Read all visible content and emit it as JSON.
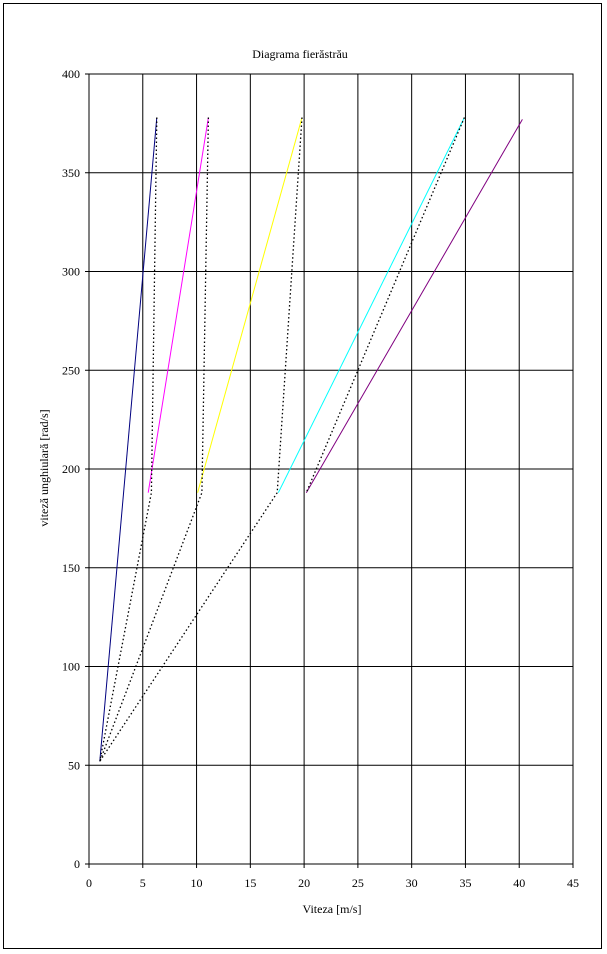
{
  "chart_data": {
    "type": "line",
    "title": "Diagrama fierăstrău",
    "xlabel": "Viteza [m/s]",
    "ylabel": "viteză unghiulară [rad/s]",
    "xlim": [
      0,
      45
    ],
    "ylim": [
      0,
      400
    ],
    "xticks": [
      0,
      5,
      10,
      15,
      20,
      25,
      30,
      35,
      40,
      45
    ],
    "yticks": [
      0,
      50,
      100,
      150,
      200,
      250,
      300,
      350,
      400
    ],
    "grid": true,
    "legend": "none",
    "series": [
      {
        "color": "#000080",
        "style": "solid",
        "points": [
          [
            1.0,
            52
          ],
          [
            6.3,
            378
          ]
        ]
      },
      {
        "color": "#ff00ff",
        "style": "solid",
        "points": [
          [
            5.5,
            188
          ],
          [
            11.1,
            378
          ]
        ]
      },
      {
        "color": "#ffff00",
        "style": "solid",
        "points": [
          [
            10.1,
            188
          ],
          [
            19.8,
            378
          ]
        ]
      },
      {
        "color": "#00ffff",
        "style": "solid",
        "points": [
          [
            17.6,
            188
          ],
          [
            34.9,
            378
          ]
        ]
      },
      {
        "color": "#800080",
        "style": "solid",
        "points": [
          [
            20.2,
            188
          ],
          [
            40.3,
            377
          ]
        ]
      },
      {
        "color": "#000000",
        "style": "dotted",
        "points": [
          [
            6.3,
            378
          ],
          [
            5.8,
            188
          ],
          [
            1.0,
            52
          ]
        ]
      },
      {
        "color": "#000000",
        "style": "dotted",
        "points": [
          [
            11.1,
            378
          ],
          [
            10.5,
            188
          ],
          [
            1.0,
            52
          ]
        ]
      },
      {
        "color": "#000000",
        "style": "dotted",
        "points": [
          [
            19.8,
            378
          ],
          [
            17.5,
            188
          ],
          [
            1.0,
            52
          ]
        ]
      },
      {
        "color": "#000000",
        "style": "dotted",
        "points": [
          [
            34.9,
            378
          ],
          [
            20.2,
            188
          ]
        ]
      }
    ]
  }
}
